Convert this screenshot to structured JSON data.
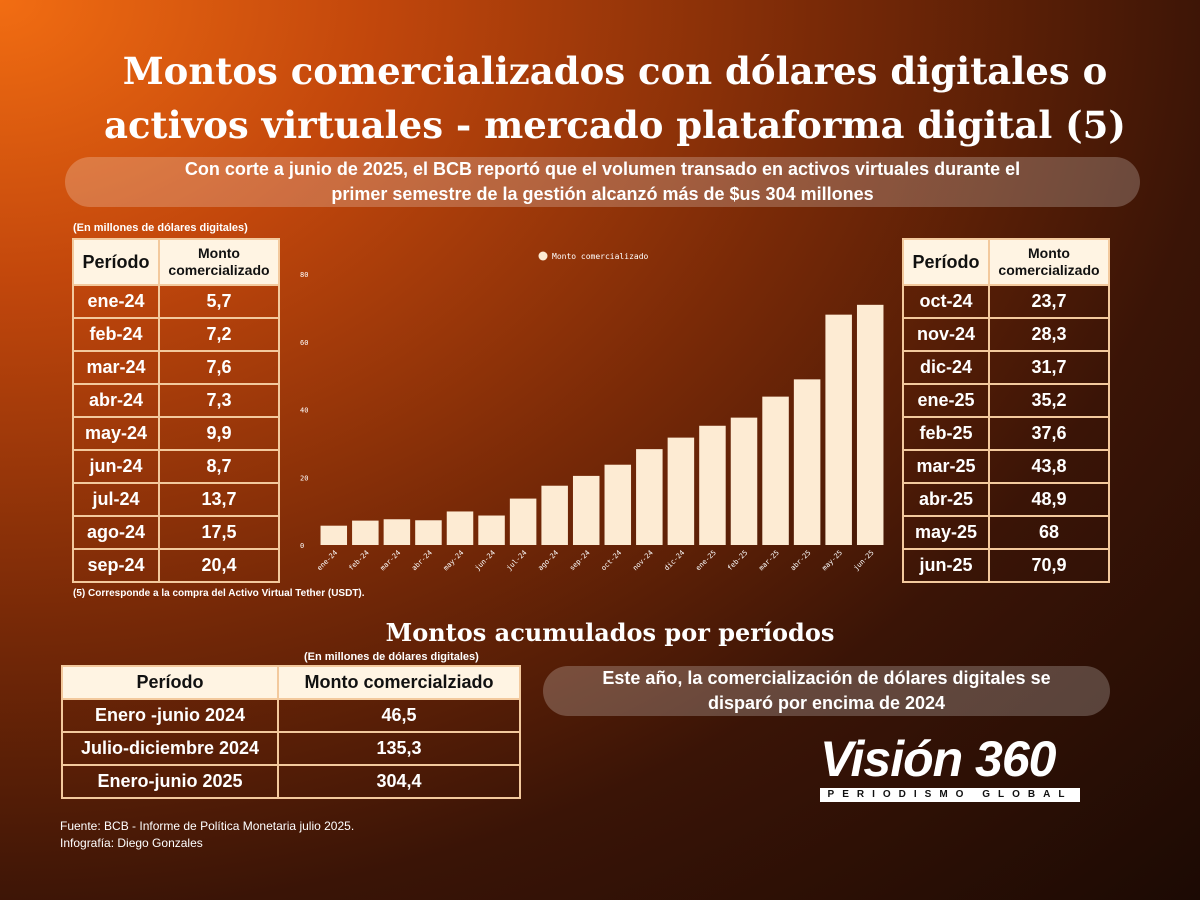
{
  "title_line1": "Montos comercializados con dólares digitales o",
  "title_line2": "activos virtuales - mercado plataforma digital (5)",
  "summary_line1": "Con corte a junio de 2025, el BCB reportó que el volumen transado en activos virtuales durante el",
  "summary_line2": "primer semestre de la gestión alcanzó más de $us 304 millones",
  "units_note": "(En millones de dólares digitales)",
  "table_header_period": "Período",
  "table_header_amount_l1": "Monto",
  "table_header_amount_l2": "comercializado",
  "left_table": [
    {
      "period": "ene-24",
      "value": "5,7"
    },
    {
      "period": "feb-24",
      "value": "7,2"
    },
    {
      "period": "mar-24",
      "value": "7,6"
    },
    {
      "period": "abr-24",
      "value": "7,3"
    },
    {
      "period": "may-24",
      "value": "9,9"
    },
    {
      "period": "jun-24",
      "value": "8,7"
    },
    {
      "period": "jul-24",
      "value": "13,7"
    },
    {
      "period": "ago-24",
      "value": "17,5"
    },
    {
      "period": "sep-24",
      "value": "20,4"
    }
  ],
  "right_table": [
    {
      "period": "oct-24",
      "value": "23,7"
    },
    {
      "period": "nov-24",
      "value": "28,3"
    },
    {
      "period": "dic-24",
      "value": "31,7"
    },
    {
      "period": "ene-25",
      "value": "35,2"
    },
    {
      "period": "feb-25",
      "value": "37,6"
    },
    {
      "period": "mar-25",
      "value": "43,8"
    },
    {
      "period": "abr-25",
      "value": "48,9"
    },
    {
      "period": "may-25",
      "value": "68"
    },
    {
      "period": "jun-25",
      "value": "70,9"
    }
  ],
  "footnote": "(5)  Corresponde a la compra del Activo Virtual Tether (USDT).",
  "subheading": "Montos acumulados por períodos",
  "accum_units_note": "(En millones de dólares digitales)",
  "accum_header_period": "Período",
  "accum_header_amount": "Monto comercialziado",
  "accum_table": [
    {
      "period": "Enero -junio 2024",
      "value": "46,5"
    },
    {
      "period": "Julio-diciembre 2024",
      "value": "135,3"
    },
    {
      "period": "Enero-junio 2025",
      "value": "304,4"
    }
  ],
  "note_line1": "Este año, la comercialización de dólares digitales se",
  "note_line2": "disparó por encima de 2024",
  "source_line": "Fuente: BCB - Informe de Política Monetaria julio 2025.",
  "credit_line": " Infografía: Diego Gonzales",
  "logo_main": "Visión 360",
  "logo_sub": "PERIODISMO GLOBAL",
  "colors": {
    "bar": "#fdebd3",
    "table_border": "#f3c99d",
    "header_bg": "#fff4e3"
  },
  "chart_data": {
    "type": "bar",
    "legend": "Monto comercializado",
    "legend_position": "top-center",
    "categories": [
      "ene-24",
      "feb-24",
      "mar-24",
      "abr-24",
      "may-24",
      "jun-24",
      "jul-24",
      "ago-24",
      "sep-24",
      "oct-24",
      "nov-24",
      "dic-24",
      "ene-25",
      "feb-25",
      "mar-25",
      "abr-25",
      "may-25",
      "jun-25"
    ],
    "series": [
      {
        "name": "Monto comercializado",
        "values": [
          5.7,
          7.2,
          7.6,
          7.3,
          9.9,
          8.7,
          13.7,
          17.5,
          20.4,
          23.7,
          28.3,
          31.7,
          35.2,
          37.6,
          43.8,
          48.9,
          68,
          70.9
        ]
      }
    ],
    "yticks": [
      0,
      20,
      40,
      60,
      80
    ],
    "ylim": [
      0,
      80
    ],
    "grid": false
  }
}
